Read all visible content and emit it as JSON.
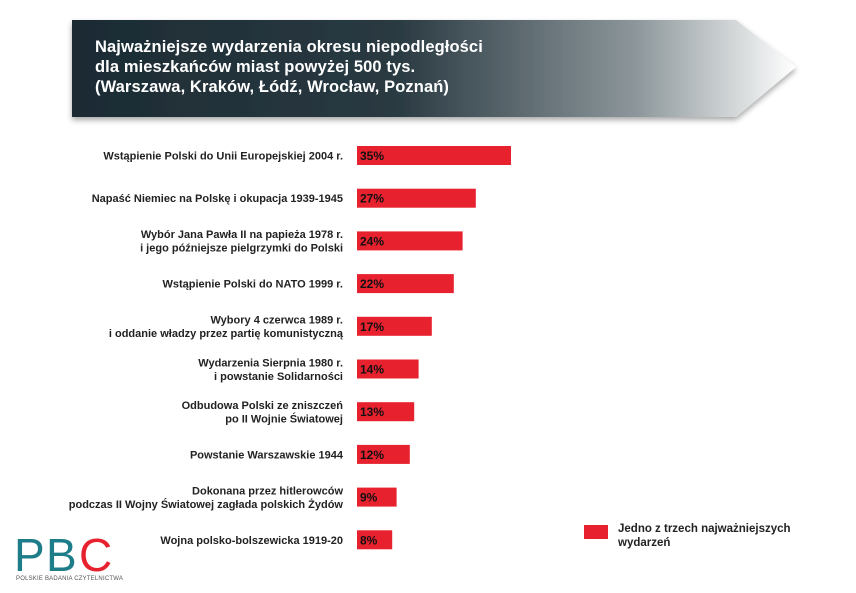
{
  "title": {
    "lines": [
      "Najważniejsze wydarzenia okresu niepodległości",
      "dla mieszkańców miast powyżej 500 tys.",
      "(Warszawa, Kraków, Łódź, Wrocław, Poznań)"
    ]
  },
  "colors": {
    "bar": "#e8212e",
    "banner_dark": "#1c2b33",
    "banner_light": "#ffffff",
    "logo_teal": "#1d7d89",
    "logo_red": "#e8212e"
  },
  "chart_data": {
    "type": "bar",
    "orientation": "horizontal",
    "title": "Najważniejsze wydarzenia okresu niepodległości dla mieszkańców miast powyżej 500 tys. (Warszawa, Kraków, Łódź, Wrocław, Poznań)",
    "categories": [
      [
        "Wstąpienie Polski do Unii Europejskiej 2004 r."
      ],
      [
        "Napaść Niemiec na Polskę i okupacja 1939-1945"
      ],
      [
        "Wybór Jana Pawła II na papieża 1978 r.",
        "i jego późniejsze pielgrzymki do Polski"
      ],
      [
        "Wstąpienie Polski do NATO 1999 r."
      ],
      [
        "Wybory 4 czerwca 1989 r.",
        "i oddanie władzy przez partię komunistyczną"
      ],
      [
        "Wydarzenia Sierpnia 1980 r.",
        "i powstanie Solidarności"
      ],
      [
        "Odbudowa Polski ze zniszczeń",
        "po II Wojnie Światowej"
      ],
      [
        "Powstanie Warszawskie 1944"
      ],
      [
        "Dokonana przez hitlerowców",
        "podczas II Wojny Światowej zagłada polskich Żydów"
      ],
      [
        "Wojna polsko-bolszewicka 1919-20"
      ]
    ],
    "values": [
      35,
      27,
      24,
      22,
      17,
      14,
      13,
      12,
      9,
      8
    ],
    "value_labels": [
      "35%",
      "27%",
      "24%",
      "22%",
      "17%",
      "14%",
      "13%",
      "12%",
      "9%",
      "8%"
    ],
    "series": [
      {
        "name": "Jedno z trzech najważniejszych wydarzeń",
        "values": [
          35,
          27,
          24,
          22,
          17,
          14,
          13,
          12,
          9,
          8
        ]
      }
    ],
    "xlabel": "",
    "ylabel": "",
    "xlim": [
      0,
      100
    ],
    "grid": false,
    "legend": "bottom-right"
  },
  "legend": {
    "lines": [
      "Jedno z trzech najważniejszych",
      "wydarzeń"
    ]
  },
  "logo": {
    "letters": [
      "P",
      "B",
      "C"
    ],
    "subtitle": "POLSKIE BADANIA CZYTELNICTWA"
  }
}
